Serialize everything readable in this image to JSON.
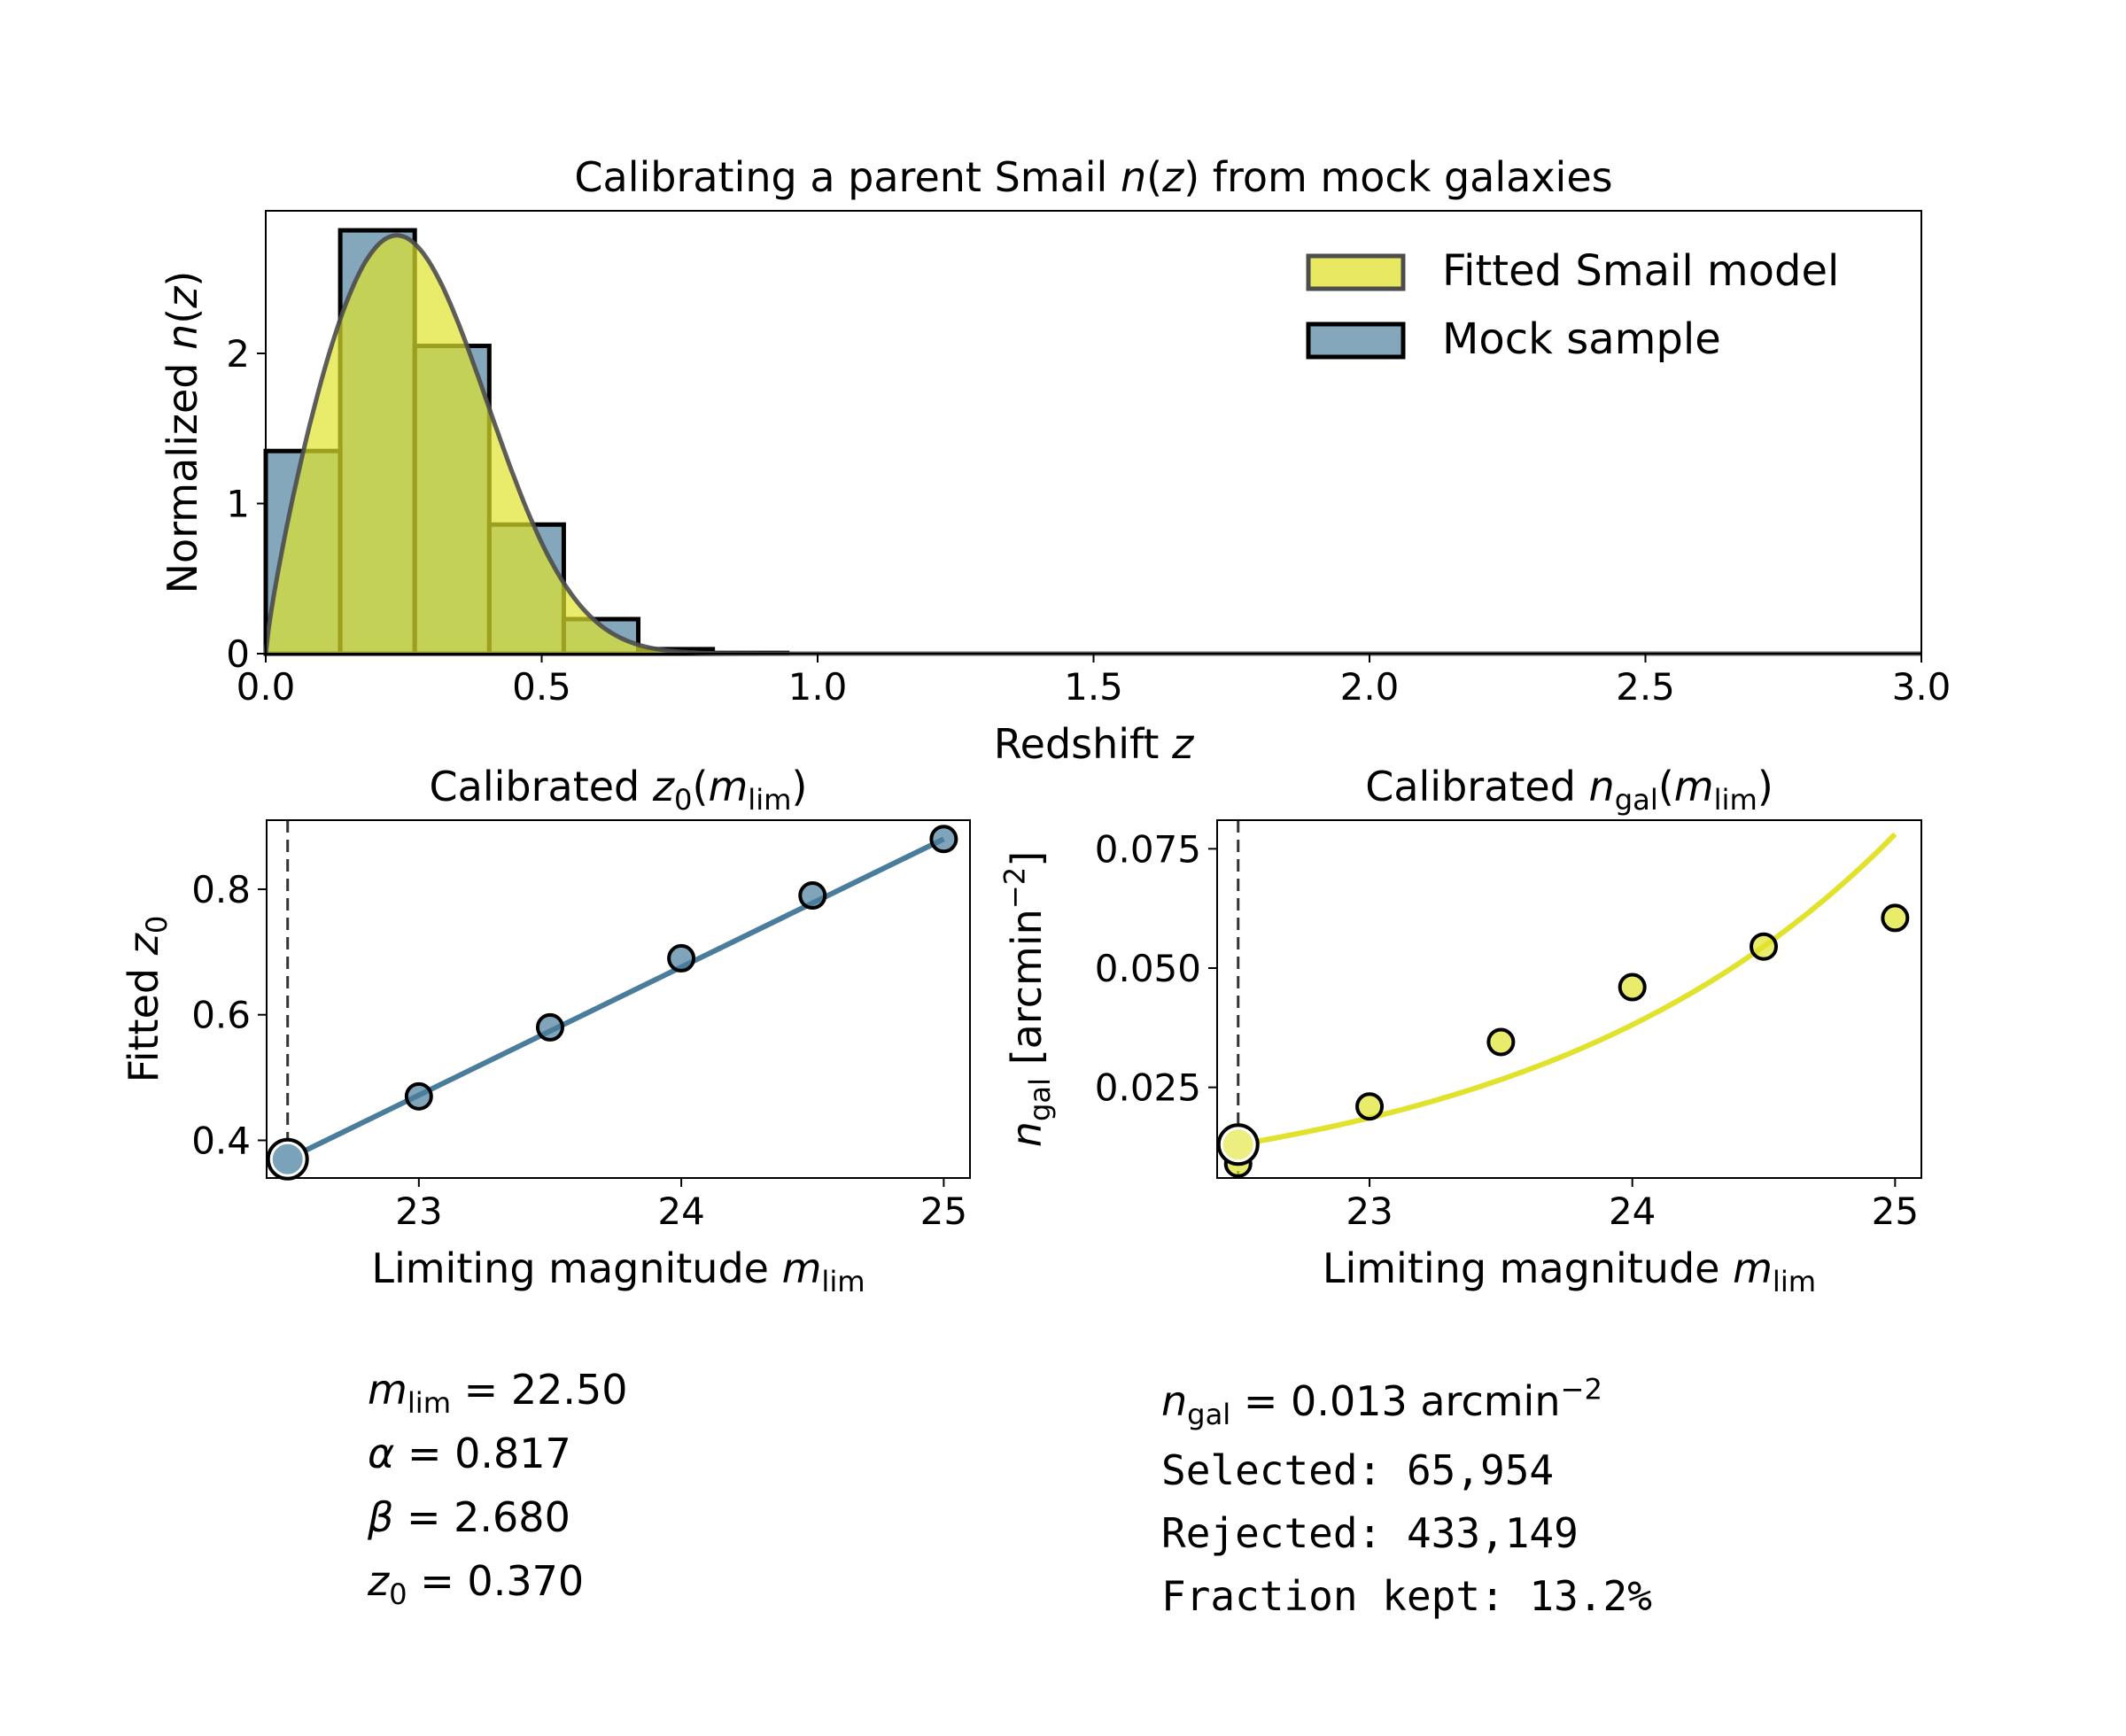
{
  "colors": {
    "mock": "#4a7d9c",
    "model": "#e0e22c",
    "edge": "#000000",
    "curve": "#4d4d4d"
  },
  "chart_data": [
    {
      "type": "bar",
      "title": [
        [
          "Calibrating a parent Smail ",
          "n"
        ],
        [
          "n",
          "i"
        ],
        [
          "(",
          "n"
        ],
        [
          "z",
          "i"
        ],
        [
          ") from mock galaxies",
          "n"
        ]
      ],
      "xlabel": [
        [
          "Redshift ",
          "n"
        ],
        [
          "z",
          "i"
        ]
      ],
      "ylabel": [
        [
          "Normalized ",
          "n"
        ],
        [
          "n",
          "i"
        ],
        [
          "(",
          "n"
        ],
        [
          "z",
          "i"
        ],
        [
          ")",
          "n"
        ]
      ],
      "xlim": [
        0,
        3.0
      ],
      "ylim": [
        0,
        2.95
      ],
      "xticks": [
        "0.0",
        "0.5",
        "1.0",
        "1.5",
        "2.0",
        "2.5",
        "3.0"
      ],
      "yticks": [
        "0",
        "1",
        "2"
      ],
      "bin_width": 0.135,
      "hist_values": [
        1.35,
        2.82,
        2.05,
        0.86,
        0.23,
        0.03,
        0.005
      ],
      "smail": {
        "alpha": 0.817,
        "beta": 2.68,
        "z0": 0.37
      },
      "legend": {
        "placement": "top-right",
        "entries": [
          "Fitted Smail model",
          "Mock sample"
        ]
      }
    },
    {
      "type": "line",
      "title": [
        [
          "Calibrated ",
          "n"
        ],
        [
          "z",
          "i"
        ],
        [
          "0",
          "sub"
        ],
        [
          "(",
          "n"
        ],
        [
          "m",
          "i"
        ],
        [
          "lim",
          "sub"
        ],
        [
          ")",
          "n"
        ]
      ],
      "xlabel": [
        [
          "Limiting magnitude ",
          "n"
        ],
        [
          "m",
          "i"
        ],
        [
          "lim",
          "sub"
        ]
      ],
      "ylabel": [
        [
          "Fitted ",
          "n"
        ],
        [
          "z",
          "i"
        ],
        [
          "0",
          "sub"
        ]
      ],
      "xlim": [
        22.42,
        25.1
      ],
      "ylim": [
        0.34,
        0.91
      ],
      "xticks": [
        "23",
        "24",
        "25"
      ],
      "yticks": [
        "0.4",
        "0.6",
        "0.8"
      ],
      "x": [
        22.5,
        23.0,
        23.5,
        24.0,
        24.5,
        25.0
      ],
      "y": [
        0.37,
        0.47,
        0.58,
        0.69,
        0.79,
        0.88
      ],
      "selected_x": 22.5,
      "selected_y": 0.37
    },
    {
      "type": "scatter",
      "title": [
        [
          "Calibrated ",
          "n"
        ],
        [
          "n",
          "i"
        ],
        [
          "gal",
          "sub"
        ],
        [
          "(",
          "n"
        ],
        [
          "m",
          "i"
        ],
        [
          "lim",
          "sub"
        ],
        [
          ")",
          "n"
        ]
      ],
      "xlabel": [
        [
          "Limiting magnitude ",
          "n"
        ],
        [
          "m",
          "i"
        ],
        [
          "lim",
          "sub"
        ]
      ],
      "ylabel": [
        [
          "n",
          "i"
        ],
        [
          "gal",
          "sub"
        ],
        [
          " [arcmin",
          "n"
        ],
        [
          "−2",
          "sup"
        ],
        [
          "]",
          "n"
        ]
      ],
      "xlim": [
        22.42,
        25.1
      ],
      "ylim": [
        0.006,
        0.081
      ],
      "xticks": [
        "23",
        "24",
        "25"
      ],
      "yticks": [
        "0.025",
        "0.050",
        "0.075"
      ],
      "x": [
        22.5,
        23.0,
        23.5,
        24.0,
        24.5,
        25.0
      ],
      "y": [
        0.009,
        0.021,
        0.0345,
        0.046,
        0.0545,
        0.0605
      ],
      "model_curve": {
        "a": 0.013,
        "k": 0.717,
        "x_ref": 22.5
      },
      "selected_x": 22.5,
      "selected_y": 0.013
    }
  ],
  "summary_left": [
    [
      [
        "m",
        "i"
      ],
      [
        "lim",
        "sub"
      ],
      [
        " = 22.50",
        "n"
      ]
    ],
    [
      [
        "α",
        "i"
      ],
      [
        " = 0.817",
        "n"
      ]
    ],
    [
      [
        "β",
        "i"
      ],
      [
        " = 2.680",
        "n"
      ]
    ],
    [
      [
        "z",
        "i"
      ],
      [
        "0",
        "sub"
      ],
      [
        " = 0.370",
        "n"
      ]
    ]
  ],
  "summary_right": {
    "ngal": [
      [
        "n",
        "i"
      ],
      [
        "gal",
        "sub"
      ],
      [
        " = 0.013 arcmin",
        "n"
      ],
      [
        "−2",
        "sup"
      ]
    ],
    "selected": "Selected: 65,954",
    "rejected": "Rejected: 433,149",
    "fraction": "Fraction kept: 13.2%"
  }
}
